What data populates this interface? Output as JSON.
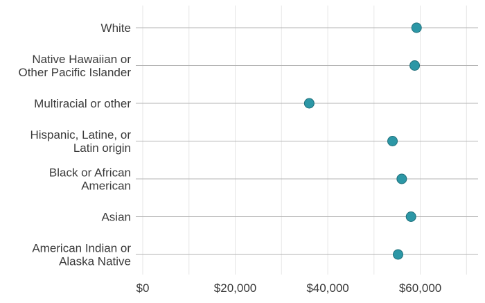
{
  "chart_data": {
    "type": "scatter",
    "title": "",
    "xlabel": "",
    "ylabel": "",
    "xlim": [
      -1500,
      72500
    ],
    "x_ticks": [
      0,
      20000,
      40000,
      60000
    ],
    "x_tick_labels": [
      "$0",
      "$20,000",
      "$40,000",
      "$60,000"
    ],
    "grid": true,
    "legend": "none",
    "categories": [
      "White",
      "Native Hawaiian or\nOther Pacific Islander",
      "Multiracial or other",
      "Hispanic, Latine, or\nLatin origin",
      "Black or African\nAmerican",
      "Asian",
      "American Indian or\nAlaska Native"
    ],
    "values": [
      59200,
      58800,
      36000,
      54000,
      56000,
      58000,
      55200
    ],
    "colors": {
      "point_fill": "#2c97a6",
      "point_stroke": "#1f6f7a",
      "category_line": "#b3b3b3",
      "grid_line": "#e6e6e6",
      "label_text": "#3a3a3a"
    }
  }
}
